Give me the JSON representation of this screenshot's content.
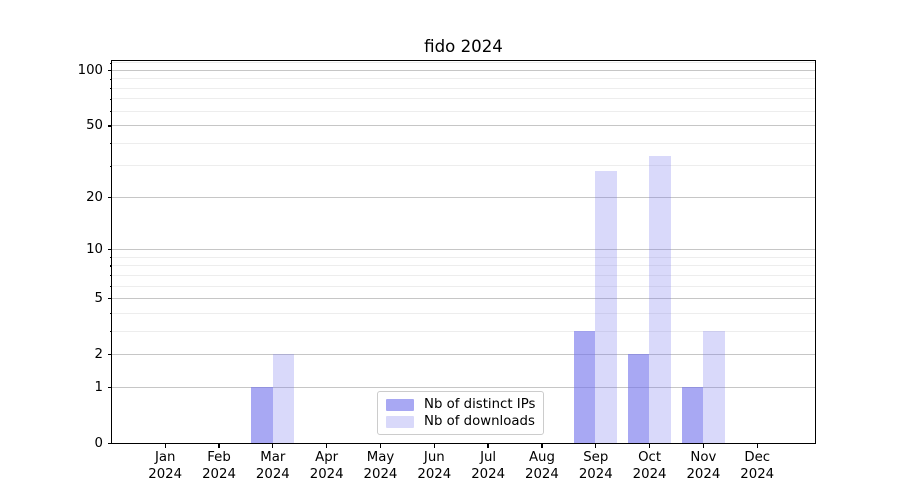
{
  "chart_data": {
    "type": "bar",
    "title": "fido 2024",
    "categories": [
      "Jan 2024",
      "Feb 2024",
      "Mar 2024",
      "Apr 2024",
      "May 2024",
      "Jun 2024",
      "Jul 2024",
      "Aug 2024",
      "Sep 2024",
      "Oct 2024",
      "Nov 2024",
      "Dec 2024"
    ],
    "series": [
      {
        "name": "Nb of distinct IPs",
        "color": "rgba(115,115,235,0.62)",
        "color_hex": "#a8a8f2",
        "values": [
          0,
          0,
          1,
          0,
          0,
          0,
          0,
          0,
          3,
          2,
          1,
          0
        ]
      },
      {
        "name": "Nb of downloads",
        "color": "rgba(115,115,235,0.27)",
        "color_hex": "#d9d9f9",
        "values": [
          0,
          0,
          2,
          0,
          0,
          0,
          0,
          0,
          28,
          34,
          3,
          0
        ]
      }
    ],
    "xlabel": "",
    "ylabel": "",
    "y_scale": "log1p",
    "ylim": [
      0,
      113
    ],
    "yticks": [
      0,
      1,
      2,
      5,
      10,
      20,
      50,
      100
    ],
    "yticks_minor": [
      3,
      4,
      6,
      7,
      8,
      9,
      30,
      40,
      60,
      70,
      80,
      90,
      110
    ],
    "grid": true,
    "legend_position": "lower center",
    "gridline_major_color": "#c6c6c6",
    "gridline_minor_color": "#ededed"
  }
}
